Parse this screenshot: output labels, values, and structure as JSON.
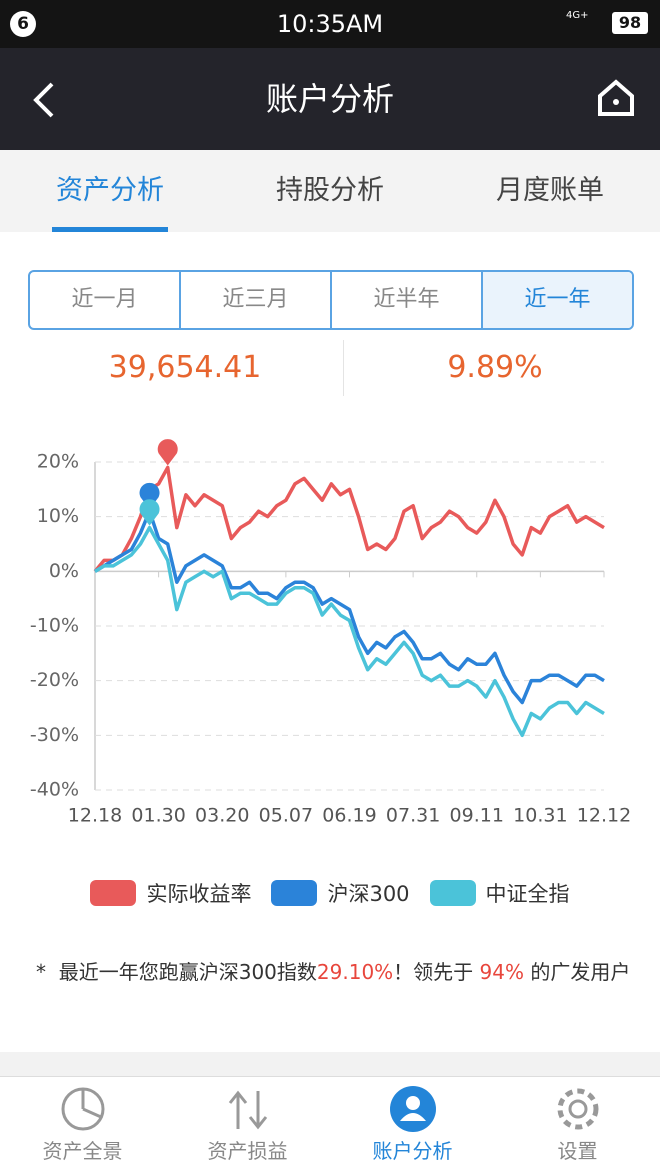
{
  "status": {
    "notif": "6",
    "time": "10:35AM",
    "network": "4G+",
    "battery": "98"
  },
  "header": {
    "title": "账户分析"
  },
  "tabs": [
    "资产分析",
    "持股分析",
    "月度账单"
  ],
  "periods": [
    "近一月",
    "近三月",
    "近半年",
    "近一年"
  ],
  "stats": [
    "39,654.41",
    "9.89%"
  ],
  "chart_data": {
    "type": "line",
    "categories": [
      "12.18",
      null,
      null,
      null,
      null,
      null,
      null,
      "01.30",
      null,
      null,
      null,
      null,
      null,
      null,
      "03.20",
      null,
      null,
      null,
      null,
      null,
      null,
      "05.07",
      null,
      null,
      null,
      null,
      null,
      null,
      "06.19",
      null,
      null,
      null,
      null,
      null,
      null,
      "07.31",
      null,
      null,
      null,
      null,
      null,
      null,
      "09.11",
      null,
      null,
      null,
      null,
      null,
      null,
      "10.31",
      null,
      null,
      null,
      null,
      null,
      null,
      "12.12"
    ],
    "series": [
      {
        "name": "实际收益率",
        "color": "#e85a5a",
        "values": [
          0,
          2,
          2,
          3,
          6,
          10,
          15,
          16,
          19,
          8,
          14,
          12,
          14,
          13,
          12,
          6,
          8,
          9,
          11,
          10,
          12,
          13,
          16,
          17,
          15,
          13,
          16,
          14,
          15,
          10,
          4,
          5,
          4,
          6,
          11,
          12,
          6,
          8,
          9,
          11,
          10,
          8,
          7,
          9,
          13,
          10,
          5,
          3,
          8,
          7,
          10,
          11,
          12,
          9,
          10,
          9,
          8
        ]
      },
      {
        "name": "沪深300",
        "color": "#2b83d9",
        "values": [
          0,
          1,
          2,
          3,
          4,
          7,
          11,
          6,
          5,
          -2,
          1,
          2,
          3,
          2,
          1,
          -3,
          -3,
          -2,
          -4,
          -4,
          -5,
          -3,
          -2,
          -2,
          -3,
          -6,
          -5,
          -6,
          -7,
          -12,
          -15,
          -13,
          -14,
          -12,
          -11,
          -13,
          -16,
          -16,
          -15,
          -17,
          -18,
          -16,
          -17,
          -17,
          -15,
          -19,
          -22,
          -24,
          -20,
          -20,
          -19,
          -19,
          -20,
          -21,
          -19,
          -19,
          -20
        ]
      },
      {
        "name": "中证全指",
        "color": "#4bc3d9",
        "values": [
          0,
          1,
          1,
          2,
          3,
          5,
          8,
          5,
          2,
          -7,
          -2,
          -1,
          0,
          -1,
          0,
          -5,
          -4,
          -4,
          -5,
          -6,
          -6,
          -4,
          -3,
          -3,
          -4,
          -8,
          -6,
          -8,
          -9,
          -14,
          -18,
          -16,
          -17,
          -15,
          -13,
          -15,
          -19,
          -20,
          -19,
          -21,
          -21,
          -20,
          -21,
          -23,
          -20,
          -23,
          -27,
          -30,
          -26,
          -27,
          -25,
          -24,
          -24,
          -26,
          -24,
          -25,
          -26
        ]
      }
    ],
    "ylim": [
      -40,
      20
    ],
    "yticks": [
      {
        "value": -40,
        "label": "-40%"
      },
      {
        "value": -30,
        "label": "-30%"
      },
      {
        "value": -20,
        "label": "-20%"
      },
      {
        "value": -10,
        "label": "-10%"
      },
      {
        "value": 0,
        "label": "0%"
      },
      {
        "value": 10,
        "label": "10%"
      },
      {
        "value": 20,
        "label": "20%"
      }
    ],
    "grid": true
  },
  "note": {
    "star": "*",
    "parts": [
      "最近一年您跑赢沪深300指数",
      "29.10%",
      "！领先于",
      "94%",
      "的广发用户"
    ]
  },
  "bottom_nav": [
    "资产全景",
    "资产损益",
    "账户分析",
    "设置"
  ]
}
